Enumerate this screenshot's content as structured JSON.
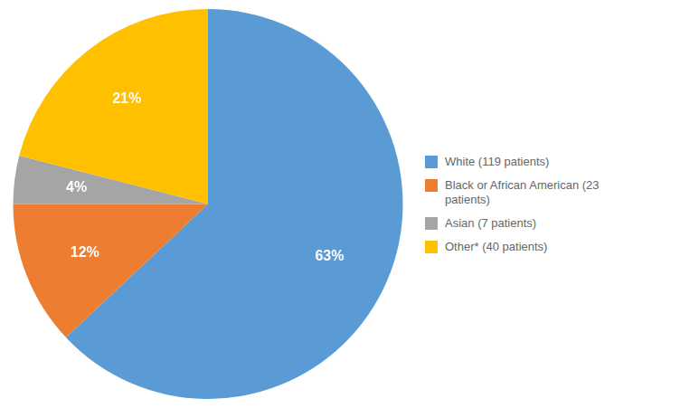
{
  "chart_data": {
    "type": "pie",
    "categories": [
      "White (119 patients)",
      "Black or African American (23\npatients)",
      "Asian (7 patients)",
      "Other* (40 patients)"
    ],
    "values": [
      63,
      12,
      4,
      21
    ],
    "value_labels": [
      "63%",
      "12%",
      "4%",
      "21%"
    ],
    "colors": [
      "#5B9BD5",
      "#ED7D31",
      "#A5A5A5",
      "#FFC000"
    ],
    "data_labels": true,
    "legend": "right"
  }
}
